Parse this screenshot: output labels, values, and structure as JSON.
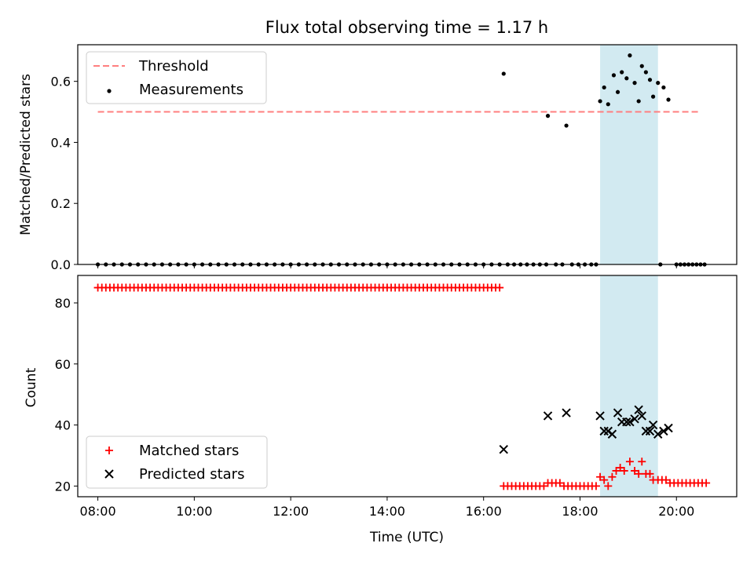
{
  "figure": {
    "title": "Flux total observing time = 1.17 h",
    "xlabel": "Time (UTC)"
  },
  "colors": {
    "threshold": "#ff7f7f",
    "measurement": "#000000",
    "matched": "#ff0000",
    "predicted": "#000000",
    "band": "#add8e6"
  },
  "chart_data": [
    {
      "type": "scatter",
      "name": "ratio",
      "ylabel": "Matched/Predicted stars",
      "xlim": [
        "07:35",
        "21:15"
      ],
      "ylim": [
        0,
        0.72
      ],
      "xticks": [
        "08:00",
        "10:00",
        "12:00",
        "14:00",
        "16:00",
        "18:00",
        "20:00"
      ],
      "yticks": [
        0.0,
        0.2,
        0.4,
        0.6
      ],
      "ytick_labels": [
        "0.0",
        "0.2",
        "0.4",
        "0.6"
      ],
      "grid": false,
      "legend": {
        "position": "upper left",
        "entries": [
          "Threshold",
          "Measurements"
        ]
      },
      "highlight_band": [
        "18:25",
        "19:37"
      ],
      "threshold": {
        "name": "Threshold",
        "y": 0.5,
        "x_range": [
          "08:00",
          "20:30"
        ],
        "style": "dashed"
      },
      "series": [
        {
          "name": "Measurements",
          "marker": "dot",
          "points": [
            [
              "08:00",
              0
            ],
            [
              "08:10",
              0
            ],
            [
              "08:20",
              0
            ],
            [
              "08:30",
              0
            ],
            [
              "08:40",
              0
            ],
            [
              "08:50",
              0
            ],
            [
              "09:00",
              0
            ],
            [
              "09:10",
              0
            ],
            [
              "09:20",
              0
            ],
            [
              "09:30",
              0
            ],
            [
              "09:40",
              0
            ],
            [
              "09:50",
              0
            ],
            [
              "10:00",
              0
            ],
            [
              "10:10",
              0
            ],
            [
              "10:20",
              0
            ],
            [
              "10:30",
              0
            ],
            [
              "10:40",
              0
            ],
            [
              "10:50",
              0
            ],
            [
              "11:00",
              0
            ],
            [
              "11:10",
              0
            ],
            [
              "11:20",
              0
            ],
            [
              "11:30",
              0
            ],
            [
              "11:40",
              0
            ],
            [
              "11:50",
              0
            ],
            [
              "12:00",
              0
            ],
            [
              "12:10",
              0
            ],
            [
              "12:20",
              0
            ],
            [
              "12:30",
              0
            ],
            [
              "12:40",
              0
            ],
            [
              "12:50",
              0
            ],
            [
              "13:00",
              0
            ],
            [
              "13:10",
              0
            ],
            [
              "13:20",
              0
            ],
            [
              "13:30",
              0
            ],
            [
              "13:40",
              0
            ],
            [
              "13:50",
              0
            ],
            [
              "14:00",
              0
            ],
            [
              "14:10",
              0
            ],
            [
              "14:20",
              0
            ],
            [
              "14:30",
              0
            ],
            [
              "14:40",
              0
            ],
            [
              "14:50",
              0
            ],
            [
              "15:00",
              0
            ],
            [
              "15:10",
              0
            ],
            [
              "15:20",
              0
            ],
            [
              "15:30",
              0
            ],
            [
              "15:40",
              0
            ],
            [
              "15:50",
              0
            ],
            [
              "16:00",
              0
            ],
            [
              "16:10",
              0
            ],
            [
              "16:20",
              0
            ],
            [
              "16:25",
              0.625
            ],
            [
              "16:30",
              0
            ],
            [
              "16:38",
              0
            ],
            [
              "16:46",
              0
            ],
            [
              "16:54",
              0
            ],
            [
              "17:02",
              0
            ],
            [
              "17:10",
              0
            ],
            [
              "17:18",
              0
            ],
            [
              "17:20",
              0.487
            ],
            [
              "17:30",
              0
            ],
            [
              "17:38",
              0
            ],
            [
              "17:43",
              0.455
            ],
            [
              "17:50",
              0
            ],
            [
              "17:58",
              0
            ],
            [
              "18:06",
              0
            ],
            [
              "18:14",
              0
            ],
            [
              "18:20",
              0
            ],
            [
              "18:25",
              0.535
            ],
            [
              "18:30",
              0.58
            ],
            [
              "18:35",
              0.525
            ],
            [
              "18:42",
              0.62
            ],
            [
              "18:47",
              0.565
            ],
            [
              "18:52",
              0.63
            ],
            [
              "18:58",
              0.61
            ],
            [
              "19:02",
              0.685
            ],
            [
              "19:08",
              0.595
            ],
            [
              "19:13",
              0.535
            ],
            [
              "19:17",
              0.65
            ],
            [
              "19:22",
              0.63
            ],
            [
              "19:27",
              0.605
            ],
            [
              "19:31",
              0.55
            ],
            [
              "19:37",
              0.595
            ],
            [
              "19:44",
              0.58
            ],
            [
              "19:50",
              0.54
            ],
            [
              "19:40",
              0
            ],
            [
              "20:00",
              0
            ],
            [
              "20:05",
              0
            ],
            [
              "20:10",
              0
            ],
            [
              "20:15",
              0
            ],
            [
              "20:20",
              0
            ],
            [
              "20:25",
              0
            ],
            [
              "20:30",
              0
            ],
            [
              "20:35",
              0
            ]
          ]
        }
      ]
    },
    {
      "type": "scatter",
      "name": "counts",
      "ylabel": "Count",
      "xlim": [
        "07:35",
        "21:15"
      ],
      "ylim": [
        16.5,
        89
      ],
      "xticks": [
        "08:00",
        "10:00",
        "12:00",
        "14:00",
        "16:00",
        "18:00",
        "20:00"
      ],
      "yticks": [
        20,
        40,
        60,
        80
      ],
      "ytick_labels": [
        "20",
        "40",
        "60",
        "80"
      ],
      "grid": false,
      "legend": {
        "position": "lower left",
        "entries": [
          "Matched stars",
          "Predicted stars"
        ]
      },
      "highlight_band": [
        "18:25",
        "19:37"
      ],
      "series": [
        {
          "name": "Matched stars",
          "marker": "plus",
          "x_regular": {
            "start": "08:00",
            "end": "16:20",
            "step_min": 5
          },
          "y_regular": 85,
          "points": [
            [
              "16:25",
              20
            ],
            [
              "16:30",
              20
            ],
            [
              "16:35",
              20
            ],
            [
              "16:40",
              20
            ],
            [
              "16:45",
              20
            ],
            [
              "16:50",
              20
            ],
            [
              "16:55",
              20
            ],
            [
              "17:00",
              20
            ],
            [
              "17:05",
              20
            ],
            [
              "17:10",
              20
            ],
            [
              "17:15",
              20
            ],
            [
              "17:20",
              21
            ],
            [
              "17:25",
              21
            ],
            [
              "17:30",
              21
            ],
            [
              "17:35",
              21
            ],
            [
              "17:40",
              20
            ],
            [
              "17:45",
              20
            ],
            [
              "17:50",
              20
            ],
            [
              "17:55",
              20
            ],
            [
              "18:00",
              20
            ],
            [
              "18:05",
              20
            ],
            [
              "18:10",
              20
            ],
            [
              "18:15",
              20
            ],
            [
              "18:20",
              20
            ],
            [
              "18:25",
              23
            ],
            [
              "18:30",
              22
            ],
            [
              "18:35",
              20
            ],
            [
              "18:40",
              23
            ],
            [
              "18:45",
              25
            ],
            [
              "18:50",
              26
            ],
            [
              "18:55",
              25
            ],
            [
              "19:02",
              28
            ],
            [
              "19:08",
              25
            ],
            [
              "19:13",
              24
            ],
            [
              "19:17",
              28
            ],
            [
              "19:22",
              24
            ],
            [
              "19:27",
              24
            ],
            [
              "19:31",
              22
            ],
            [
              "19:37",
              22
            ],
            [
              "19:42",
              22
            ],
            [
              "19:47",
              22
            ],
            [
              "19:52",
              21
            ],
            [
              "19:57",
              21
            ],
            [
              "20:02",
              21
            ],
            [
              "20:07",
              21
            ],
            [
              "20:12",
              21
            ],
            [
              "20:17",
              21
            ],
            [
              "20:22",
              21
            ],
            [
              "20:27",
              21
            ],
            [
              "20:32",
              21
            ],
            [
              "20:37",
              21
            ]
          ]
        },
        {
          "name": "Predicted stars",
          "marker": "x",
          "points": [
            [
              "16:25",
              32
            ],
            [
              "17:20",
              43
            ],
            [
              "17:43",
              44
            ],
            [
              "18:25",
              43
            ],
            [
              "18:30",
              38
            ],
            [
              "18:35",
              38
            ],
            [
              "18:40",
              37
            ],
            [
              "18:47",
              44
            ],
            [
              "18:52",
              41
            ],
            [
              "18:58",
              41
            ],
            [
              "19:02",
              41
            ],
            [
              "19:08",
              42
            ],
            [
              "19:13",
              45
            ],
            [
              "19:17",
              43
            ],
            [
              "19:22",
              38
            ],
            [
              "19:27",
              38
            ],
            [
              "19:31",
              40
            ],
            [
              "19:37",
              37
            ],
            [
              "19:44",
              38
            ],
            [
              "19:50",
              39
            ]
          ]
        }
      ]
    }
  ]
}
